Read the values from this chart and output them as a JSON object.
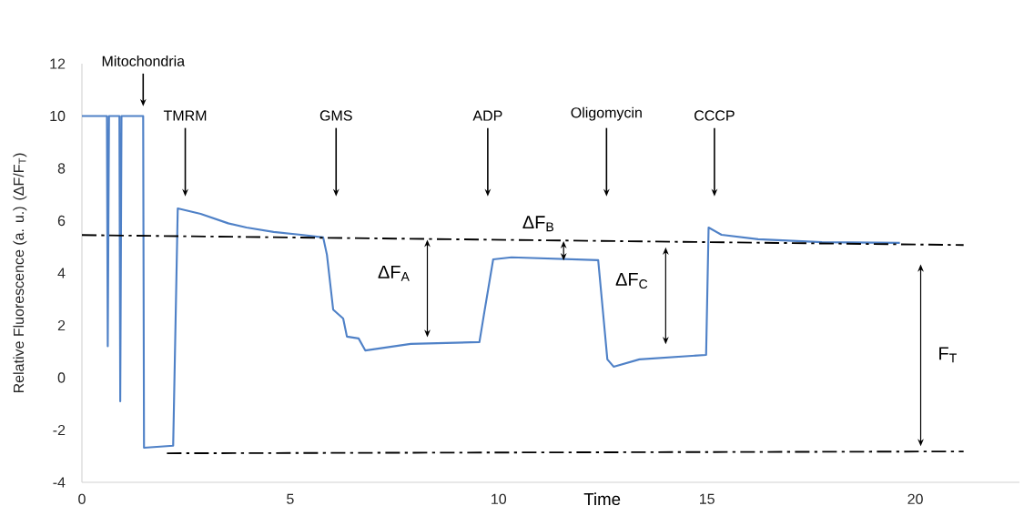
{
  "chart_data": {
    "type": "line",
    "xlabel": "Time",
    "ylabel": "Relative Fluorescence (a. u.)  (ΔF/F$_{T}$)",
    "xlim": [
      0,
      22.5
    ],
    "ylim": [
      -4,
      12
    ],
    "xticks": [
      0,
      5,
      10,
      15,
      20
    ],
    "yticks": [
      -4,
      -2,
      0,
      2,
      4,
      6,
      8,
      10,
      12
    ],
    "series": [
      {
        "color": "#4f81c7",
        "line_style": "solid",
        "x": [
          0,
          0.6,
          0.62,
          0.65,
          0.9,
          0.92,
          0.95,
          1.47,
          1.49,
          2.19,
          2.3,
          2.85,
          3.51,
          3.95,
          4.6,
          5.26,
          5.79,
          5.88,
          6.03,
          6.27,
          6.36,
          6.64,
          6.8,
          7.89,
          9.54,
          9.65,
          9.87,
          10.31,
          12.39,
          12.5,
          12.61,
          12.76,
          13.38,
          14.98,
          15.04,
          15.35,
          16.23,
          17.76,
          19.63
        ],
        "values": [
          10,
          10,
          1.2,
          10,
          10,
          -0.9,
          10,
          10,
          -2.68,
          -2.6,
          6.47,
          6.26,
          5.9,
          5.74,
          5.57,
          5.46,
          5.36,
          4.7,
          2.6,
          2.26,
          1.57,
          1.5,
          1.04,
          1.29,
          1.36,
          2.43,
          4.52,
          4.6,
          4.49,
          2.6,
          0.7,
          0.42,
          0.7,
          0.87,
          5.74,
          5.46,
          5.29,
          5.18,
          5.15
        ]
      },
      {
        "color": "#000000",
        "line_style": "dashdot",
        "x": [
          0,
          21.16
        ],
        "values": [
          5.45,
          5.07
        ]
      },
      {
        "color": "#000000",
        "line_style": "dashdot",
        "x": [
          2.04,
          21.16
        ],
        "values": [
          -2.89,
          -2.82
        ]
      }
    ],
    "annotations": [
      "Mitochondria",
      "TMRM",
      "GMS",
      "ADP",
      "Oligomycin",
      "CCCP",
      "ΔF$_{A}$",
      {
        "text": "ΔF$_{B}$",
        "x": 11.56,
        "y": 4.5
      },
      "ΔF$_{C}$",
      "F$_{T}$"
    ]
  }
}
